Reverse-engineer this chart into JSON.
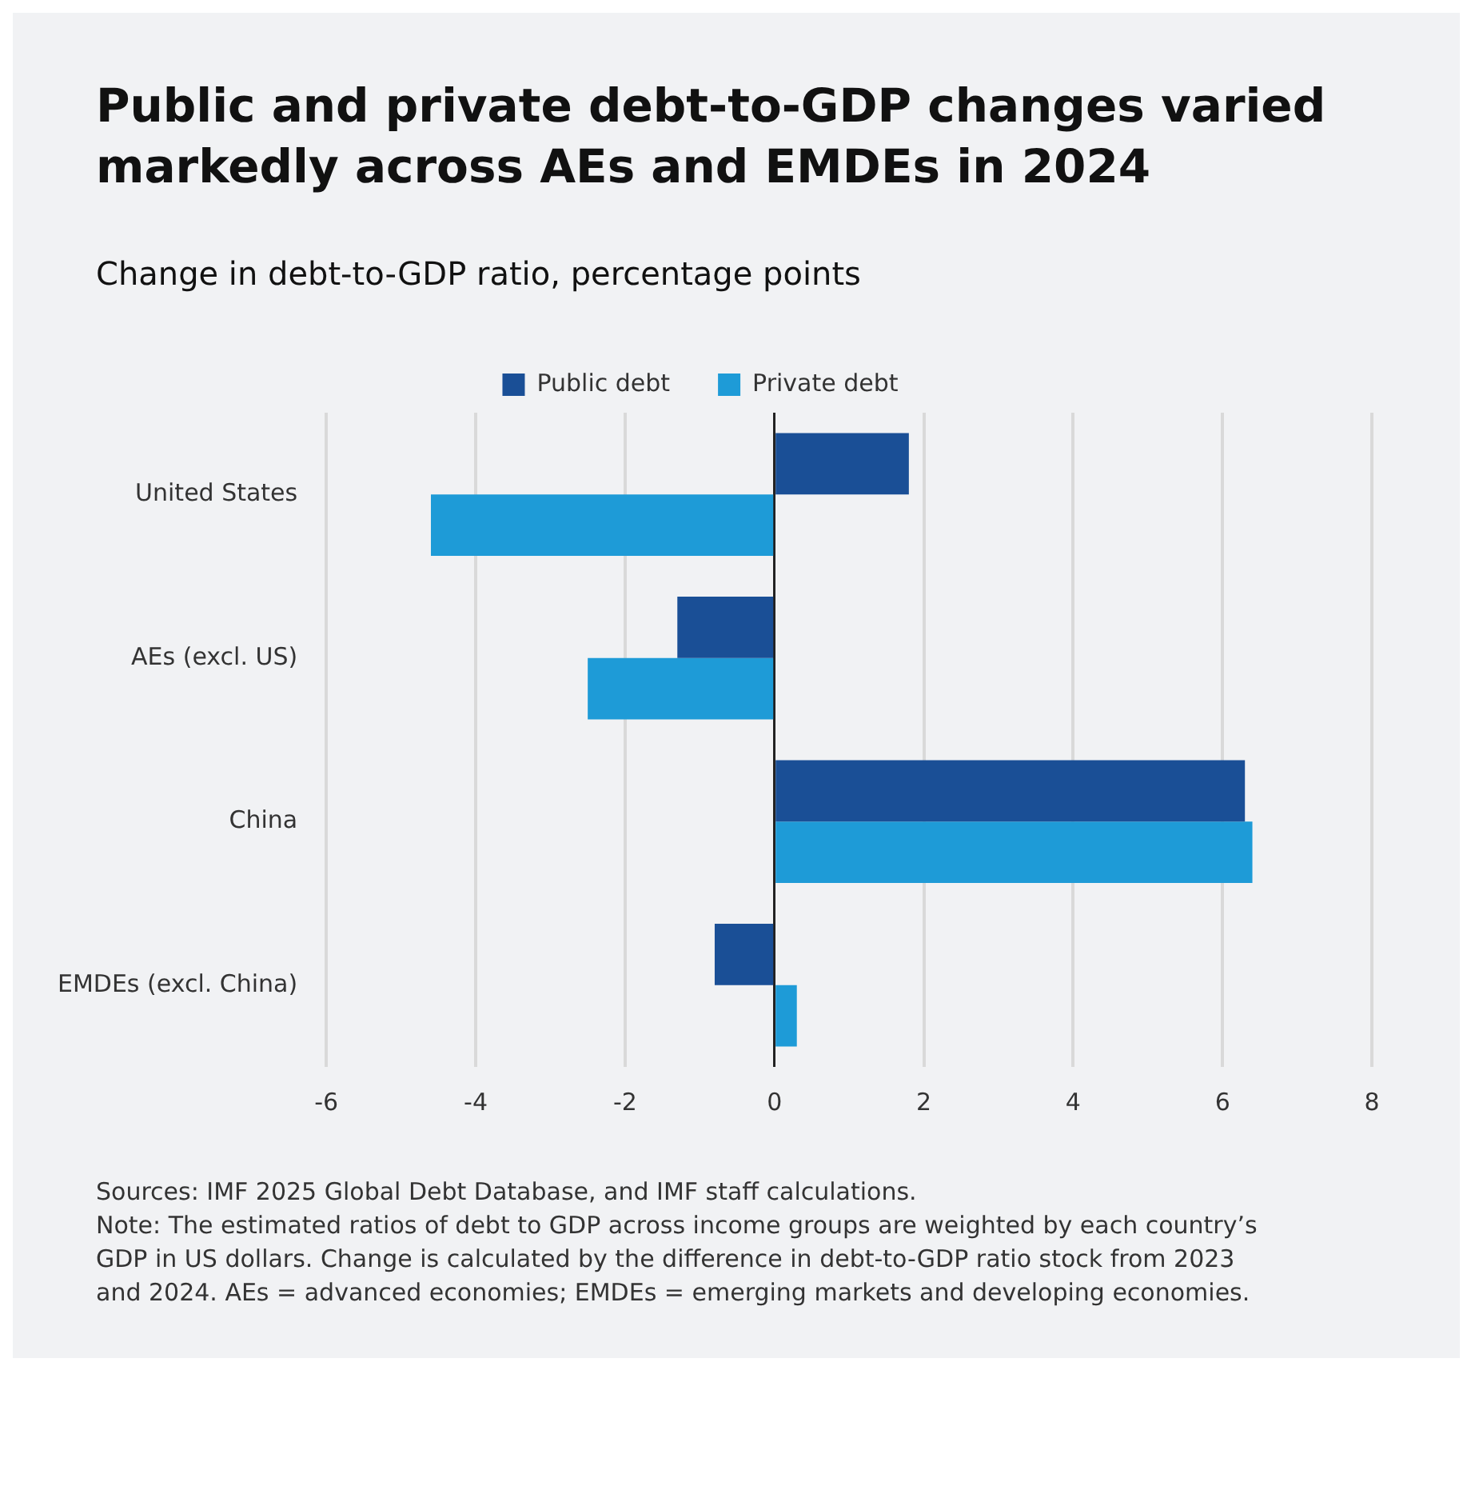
{
  "chart_data": {
    "type": "bar",
    "orientation": "horizontal",
    "title": "Public and private debt-to-GDP changes varied markedly across AEs and EMDEs in 2024",
    "subtitle": "Change in debt-to-GDP ratio, percentage points",
    "categories": [
      "United States",
      "AEs (excl. US)",
      "China",
      "EMDEs (excl. China)"
    ],
    "series": [
      {
        "name": "Public debt",
        "color": "#1a4f96",
        "values": [
          1.8,
          -1.3,
          6.3,
          -0.8
        ]
      },
      {
        "name": "Private debt",
        "color": "#1e9bd7",
        "values": [
          -4.6,
          -2.5,
          6.4,
          0.3
        ]
      }
    ],
    "xlim": [
      -6,
      8
    ],
    "xticks": [
      -6,
      -4,
      -2,
      0,
      2,
      4,
      6,
      8
    ],
    "grid": "x",
    "legend": "top",
    "annotations": [
      "Sources: IMF 2025 Global Debt Database, and IMF staff calculations.",
      "Note: The estimated ratios of debt to GDP across income groups are weighted by each country’s GDP in US dollars. Change is calculated by the difference in debt-to-GDP ratio stock from 2023 and 2024. AEs = advanced economies; EMDEs = emerging markets and developing economies."
    ]
  }
}
